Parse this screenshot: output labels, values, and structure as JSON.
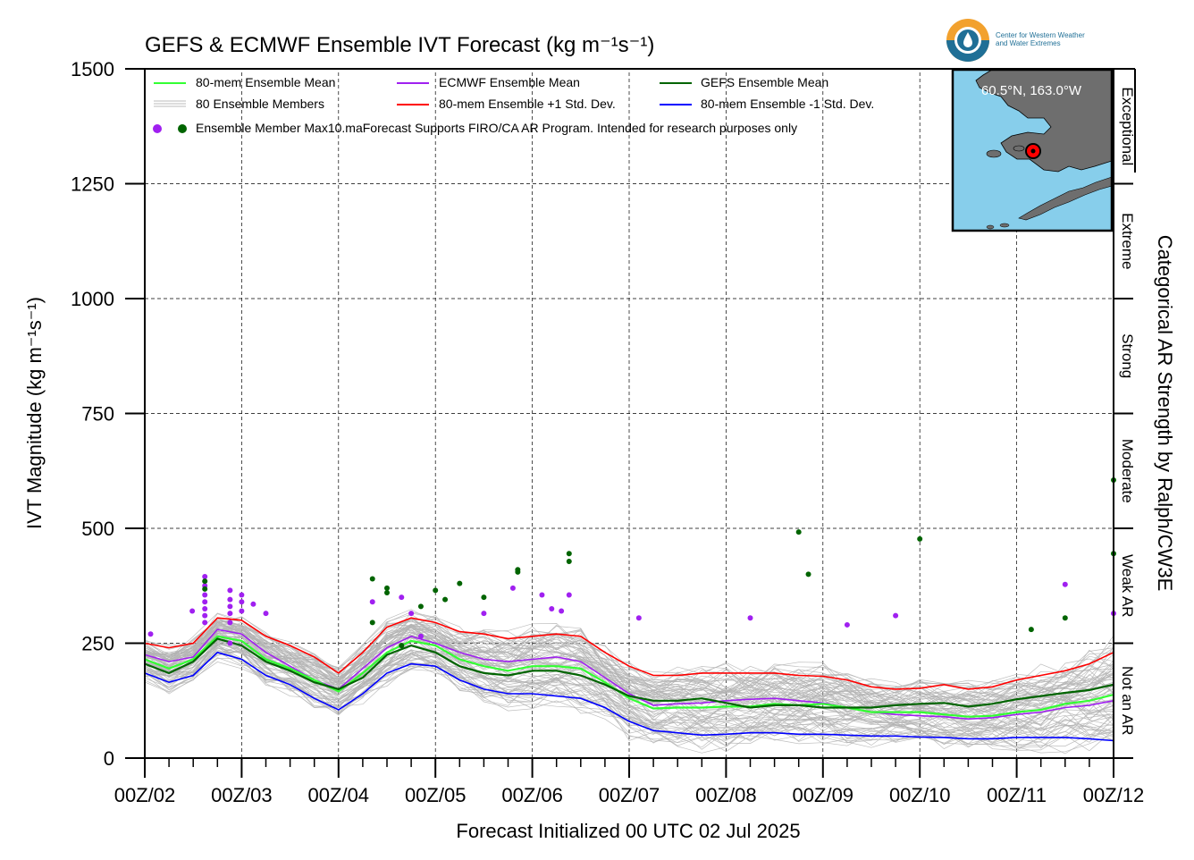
{
  "chart_data": {
    "type": "line",
    "title": "GEFS & ECMWF Ensemble IVT Forecast (kg m⁻¹s⁻¹)",
    "ylabel": "IVT Magnitude (kg m⁻¹s⁻¹)",
    "xlabel": "Forecast Initialized 00 UTC 02 Jul 2025",
    "right_label": "Categorical AR Strength by Ralph/CW3E",
    "ylim": [
      0,
      1500
    ],
    "xlim": [
      0,
      10
    ],
    "yticks": [
      0,
      250,
      500,
      750,
      1000,
      1250,
      1500
    ],
    "xtick_labels": [
      "00Z/02",
      "00Z/03",
      "00Z/04",
      "00Z/05",
      "00Z/06",
      "00Z/07",
      "00Z/08",
      "00Z/09",
      "00Z/10",
      "00Z/11",
      "00Z/12"
    ],
    "grid": true,
    "legend_position": "top-left",
    "categories_right": [
      {
        "label": "Not an AR",
        "from": 0,
        "to": 250
      },
      {
        "label": "Weak AR",
        "from": 250,
        "to": 500
      },
      {
        "label": "Moderate",
        "from": 500,
        "to": 750
      },
      {
        "label": "Strong",
        "from": 750,
        "to": 1000
      },
      {
        "label": "Extreme",
        "from": 1000,
        "to": 1250
      },
      {
        "label": "Exceptional",
        "from": 1250,
        "to": 1500
      }
    ],
    "legend": {
      "mean80": "80-mem Ensemble Mean",
      "members": "80 Ensemble Members",
      "max_points": "Ensemble Member Max",
      "ecmwf": "ECMWF Ensemble Mean",
      "plus1": "80-mem Ensemble +1 Std. Dev.",
      "note": "10.maForecast Supports FIRO/CA AR Program. Intended for research purposes only",
      "gefs": "GEFS Ensemble Mean",
      "minus1": "80-mem Ensemble -1 Std. Dev."
    },
    "colors": {
      "mean80": "#33ff33",
      "ecmwf": "#a020f0",
      "gefs": "#006400",
      "plus1": "#ff0000",
      "minus1": "#0000ff",
      "members": "#b3b3b3",
      "grid": "#000000"
    },
    "x": [
      0,
      0.25,
      0.5,
      0.75,
      1,
      1.25,
      1.5,
      1.75,
      2,
      2.25,
      2.5,
      2.75,
      3,
      3.25,
      3.5,
      3.75,
      4,
      4.25,
      4.5,
      4.75,
      5,
      5.25,
      5.5,
      5.75,
      6,
      6.25,
      6.5,
      6.75,
      7,
      7.25,
      7.5,
      7.75,
      8,
      8.25,
      8.5,
      8.75,
      9,
      9.25,
      9.5,
      9.75,
      10
    ],
    "series": [
      {
        "name": "80-mem Ensemble Mean",
        "key": "mean80",
        "values": [
          215,
          195,
          215,
          265,
          255,
          215,
          195,
          170,
          145,
          185,
          230,
          255,
          245,
          215,
          200,
          190,
          200,
          200,
          195,
          165,
          130,
          108,
          110,
          110,
          112,
          112,
          118,
          115,
          118,
          110,
          100,
          100,
          100,
          95,
          90,
          92,
          100,
          105,
          118,
          125,
          138
        ]
      },
      {
        "name": "ECMWF Ensemble Mean",
        "key": "ecmwf",
        "values": [
          225,
          210,
          220,
          280,
          270,
          230,
          200,
          170,
          150,
          195,
          240,
          265,
          250,
          230,
          215,
          210,
          215,
          220,
          210,
          175,
          140,
          115,
          118,
          120,
          125,
          128,
          130,
          125,
          120,
          110,
          100,
          95,
          92,
          90,
          85,
          88,
          95,
          100,
          110,
          115,
          125
        ]
      },
      {
        "name": "GEFS Ensemble Mean",
        "key": "gefs",
        "values": [
          205,
          185,
          210,
          260,
          245,
          210,
          190,
          165,
          150,
          175,
          225,
          245,
          230,
          200,
          185,
          180,
          190,
          190,
          180,
          160,
          135,
          125,
          125,
          130,
          120,
          110,
          115,
          115,
          110,
          110,
          110,
          115,
          118,
          120,
          112,
          118,
          128,
          135,
          142,
          148,
          160
        ]
      },
      {
        "name": "80-mem Ensemble +1 Std. Dev.",
        "key": "plus1",
        "values": [
          250,
          240,
          250,
          305,
          300,
          265,
          245,
          220,
          185,
          230,
          285,
          305,
          295,
          275,
          270,
          260,
          265,
          270,
          265,
          230,
          200,
          180,
          180,
          185,
          185,
          185,
          185,
          180,
          178,
          170,
          155,
          150,
          152,
          160,
          150,
          155,
          170,
          180,
          190,
          205,
          230
        ]
      },
      {
        "name": "80-mem Ensemble -1 Std. Dev.",
        "key": "minus1",
        "values": [
          185,
          165,
          180,
          230,
          215,
          180,
          160,
          130,
          105,
          140,
          185,
          205,
          200,
          170,
          150,
          140,
          140,
          135,
          130,
          110,
          80,
          60,
          55,
          50,
          52,
          55,
          55,
          52,
          52,
          50,
          48,
          48,
          46,
          45,
          42,
          42,
          45,
          45,
          45,
          42,
          38
        ]
      }
    ],
    "members_range": {
      "count": 80,
      "spread_factor": 1.0
    },
    "max_points": {
      "ecmwf": [
        [
          0.06,
          270
        ],
        [
          0.49,
          320
        ],
        [
          0.62,
          395
        ],
        [
          0.62,
          375
        ],
        [
          0.62,
          355
        ],
        [
          0.62,
          340
        ],
        [
          0.62,
          325
        ],
        [
          0.62,
          310
        ],
        [
          0.62,
          295
        ],
        [
          0.88,
          365
        ],
        [
          0.88,
          345
        ],
        [
          0.88,
          330
        ],
        [
          0.88,
          315
        ],
        [
          0.88,
          295
        ],
        [
          0.88,
          250
        ],
        [
          1.0,
          355
        ],
        [
          1.0,
          340
        ],
        [
          1.0,
          320
        ],
        [
          1.12,
          335
        ],
        [
          1.25,
          315
        ],
        [
          2.35,
          340
        ],
        [
          2.65,
          350
        ],
        [
          2.75,
          315
        ],
        [
          2.85,
          265
        ],
        [
          3.5,
          315
        ],
        [
          3.8,
          370
        ],
        [
          4.1,
          355
        ],
        [
          4.2,
          325
        ],
        [
          4.3,
          320
        ],
        [
          4.38,
          355
        ],
        [
          5.1,
          305
        ],
        [
          6.25,
          305
        ],
        [
          7.25,
          290
        ],
        [
          7.75,
          310
        ],
        [
          9.5,
          378
        ],
        [
          10.0,
          315
        ]
      ],
      "gefs": [
        [
          0.62,
          385
        ],
        [
          0.62,
          368
        ],
        [
          2.35,
          390
        ],
        [
          2.5,
          370
        ],
        [
          2.5,
          360
        ],
        [
          2.35,
          295
        ],
        [
          2.65,
          245
        ],
        [
          2.85,
          330
        ],
        [
          3.0,
          365
        ],
        [
          3.1,
          345
        ],
        [
          3.25,
          380
        ],
        [
          3.5,
          350
        ],
        [
          3.85,
          405
        ],
        [
          3.85,
          410
        ],
        [
          4.38,
          445
        ],
        [
          4.38,
          428
        ],
        [
          6.75,
          492
        ],
        [
          6.85,
          400
        ],
        [
          8.0,
          477
        ],
        [
          9.15,
          280
        ],
        [
          9.5,
          305
        ],
        [
          10.0,
          605
        ],
        [
          10.0,
          445
        ]
      ]
    },
    "inset_map": {
      "label": "60.5°N, 163.0°W",
      "land_color": "#6e6e6e",
      "water_color": "#87ceeb"
    }
  },
  "logo": {
    "line1": "Center for Western Weather",
    "line2": "and Water Extremes"
  }
}
